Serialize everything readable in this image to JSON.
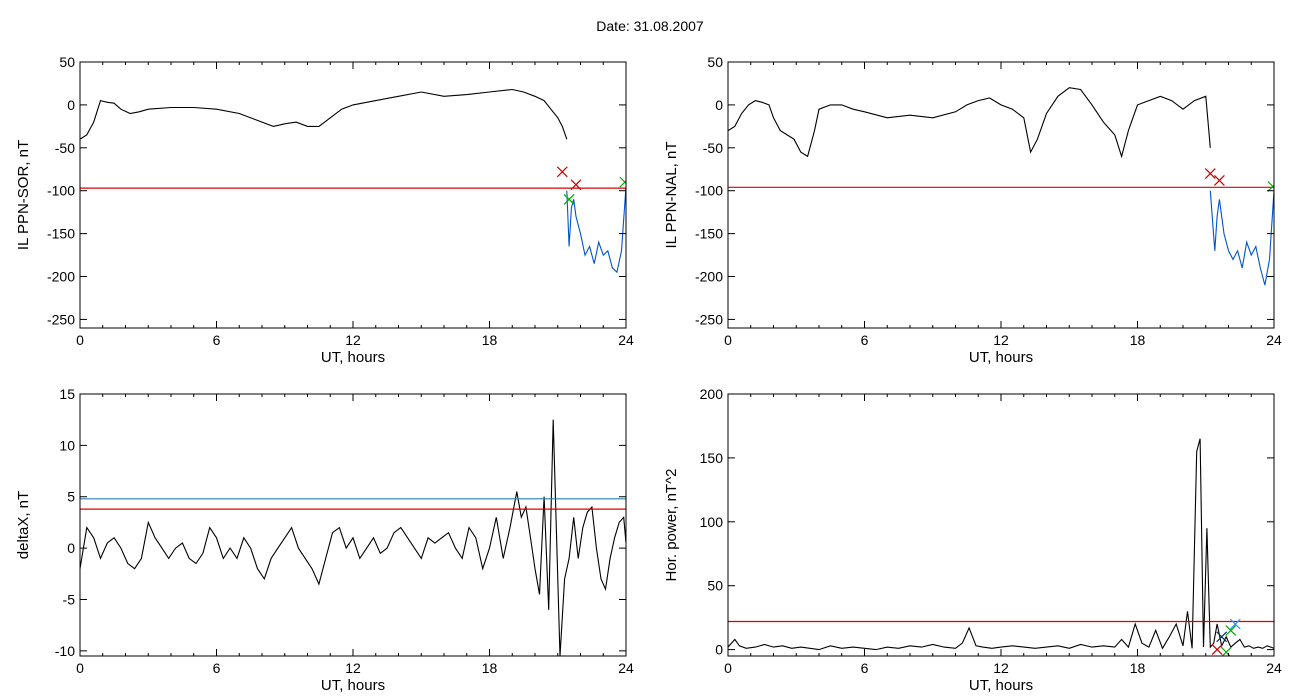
{
  "title": "Date:  31.08.2007",
  "chart_data": [
    {
      "type": "line",
      "xlabel": "UT, hours",
      "ylabel": "IL PPN-SOR, nT",
      "xlim": [
        0,
        24
      ],
      "ylim": [
        -260,
        50
      ],
      "xticks": [
        0,
        6,
        12,
        18,
        24
      ],
      "yticks": [
        50,
        0,
        -50,
        -100,
        -150,
        -200,
        -250
      ],
      "series": [
        {
          "color": "#000000",
          "x": [
            0,
            0.3,
            0.6,
            0.9,
            1.2,
            1.5,
            1.8,
            2.2,
            2.6,
            3,
            4,
            5,
            6,
            7,
            8,
            8.5,
            9,
            9.5,
            10,
            10.5,
            11,
            11.5,
            12,
            13,
            14,
            15,
            16,
            17,
            18,
            19,
            19.5,
            20,
            20.4,
            20.7,
            21,
            21.2,
            21.4
          ],
          "y": [
            -40,
            -35,
            -20,
            5,
            3,
            2,
            -5,
            -10,
            -8,
            -5,
            -3,
            -3,
            -5,
            -10,
            -20,
            -25,
            -22,
            -20,
            -25,
            -25,
            -15,
            -5,
            0,
            5,
            10,
            15,
            10,
            12,
            15,
            18,
            15,
            10,
            5,
            -5,
            -15,
            -25,
            -40
          ]
        },
        {
          "color": "#0055cc",
          "x": [
            21.4,
            21.5,
            21.6,
            21.7,
            21.8,
            22,
            22.2,
            22.4,
            22.6,
            22.8,
            23,
            23.2,
            23.4,
            23.6,
            23.8,
            24
          ],
          "y": [
            -100,
            -165,
            -120,
            -110,
            -130,
            -150,
            -175,
            -165,
            -185,
            -160,
            -175,
            -170,
            -190,
            -195,
            -170,
            -95
          ]
        },
        {
          "color": "#dd0000",
          "x": [
            0,
            24
          ],
          "y": [
            -97,
            -97
          ]
        }
      ],
      "markers": [
        {
          "color": "#cc0000",
          "x": 21.2,
          "y": -78
        },
        {
          "color": "#cc0000",
          "x": 21.8,
          "y": -93
        },
        {
          "color": "#00aa00",
          "x": 21.5,
          "y": -110
        },
        {
          "color": "#00aa00",
          "x": 23.95,
          "y": -90
        }
      ]
    },
    {
      "type": "line",
      "xlabel": "UT, hours",
      "ylabel": "IL PPN-NAL, nT",
      "xlim": [
        0,
        24
      ],
      "ylim": [
        -260,
        50
      ],
      "xticks": [
        0,
        6,
        12,
        18,
        24
      ],
      "yticks": [
        50,
        0,
        -50,
        -100,
        -150,
        -200,
        -250
      ],
      "series": [
        {
          "color": "#000000",
          "x": [
            0,
            0.3,
            0.6,
            0.9,
            1.2,
            1.5,
            1.8,
            2,
            2.3,
            2.6,
            2.9,
            3.2,
            3.5,
            3.8,
            4,
            4.5,
            5,
            5.5,
            6,
            7,
            8,
            9,
            10,
            10.5,
            11,
            11.5,
            12,
            12.5,
            13,
            13.3,
            13.6,
            14,
            14.5,
            15,
            15.5,
            16,
            16.5,
            17,
            17.3,
            17.6,
            18,
            18.5,
            19,
            19.5,
            20,
            20.5,
            21,
            21.2
          ],
          "y": [
            -30,
            -25,
            -10,
            0,
            5,
            3,
            0,
            -15,
            -30,
            -35,
            -40,
            -55,
            -60,
            -30,
            -5,
            0,
            0,
            -5,
            -8,
            -15,
            -12,
            -15,
            -8,
            0,
            5,
            8,
            0,
            -5,
            -15,
            -55,
            -40,
            -10,
            10,
            20,
            18,
            0,
            -20,
            -35,
            -60,
            -30,
            0,
            5,
            10,
            5,
            -5,
            5,
            10,
            -50
          ]
        },
        {
          "color": "#0055cc",
          "x": [
            21.2,
            21.4,
            21.5,
            21.6,
            21.8,
            22,
            22.2,
            22.4,
            22.6,
            22.8,
            23,
            23.2,
            23.4,
            23.6,
            23.8,
            24
          ],
          "y": [
            -100,
            -170,
            -130,
            -110,
            -150,
            -170,
            -180,
            -170,
            -190,
            -160,
            -175,
            -165,
            -190,
            -210,
            -180,
            -100
          ]
        },
        {
          "color": "#dd0000",
          "x": [
            0,
            24
          ],
          "y": [
            -96,
            -96
          ]
        }
      ],
      "markers": [
        {
          "color": "#cc0000",
          "x": 21.2,
          "y": -80
        },
        {
          "color": "#cc0000",
          "x": 21.6,
          "y": -88
        },
        {
          "color": "#00aa00",
          "x": 23.95,
          "y": -95
        }
      ]
    },
    {
      "type": "line",
      "xlabel": "UT, hours",
      "ylabel": "deltaX, nT",
      "xlim": [
        0,
        24
      ],
      "ylim": [
        -10.5,
        15
      ],
      "xticks": [
        0,
        6,
        12,
        18,
        24
      ],
      "yticks": [
        15,
        10,
        5,
        0,
        -5,
        -10
      ],
      "series": [
        {
          "color": "#000000",
          "x": [
            0,
            0.3,
            0.6,
            0.9,
            1.2,
            1.5,
            1.8,
            2.1,
            2.4,
            2.7,
            3,
            3.3,
            3.6,
            3.9,
            4.2,
            4.5,
            4.8,
            5.1,
            5.4,
            5.7,
            6,
            6.3,
            6.6,
            6.9,
            7.2,
            7.5,
            7.8,
            8.1,
            8.4,
            8.7,
            9,
            9.3,
            9.6,
            9.9,
            10.2,
            10.5,
            10.8,
            11.1,
            11.4,
            11.7,
            12,
            12.3,
            12.6,
            12.9,
            13.2,
            13.5,
            13.8,
            14.1,
            14.4,
            14.7,
            15,
            15.3,
            15.6,
            15.9,
            16.2,
            16.5,
            16.8,
            17.1,
            17.4,
            17.7,
            18,
            18.3,
            18.6,
            18.9,
            19.2,
            19.4,
            19.6,
            19.8,
            20,
            20.2,
            20.4,
            20.6,
            20.8,
            20.95,
            21.1,
            21.3,
            21.5,
            21.7,
            21.9,
            22.1,
            22.3,
            22.5,
            22.7,
            22.9,
            23.1,
            23.3,
            23.5,
            23.7,
            23.9,
            24
          ],
          "y": [
            -2,
            2,
            1,
            -1,
            0.5,
            1,
            0,
            -1.5,
            -2,
            -1,
            2.5,
            1,
            0,
            -1,
            0,
            0.5,
            -1,
            -1.5,
            -0.5,
            2,
            1,
            -1,
            0,
            -1,
            1,
            0,
            -2,
            -3,
            -1,
            0,
            1,
            2,
            0,
            -1,
            -2,
            -3.5,
            -1,
            1.5,
            2,
            0,
            1,
            -1,
            0,
            1,
            -0.5,
            0,
            1.5,
            2,
            1,
            0,
            -1,
            1,
            0.5,
            1,
            1.5,
            0,
            -1,
            2,
            1,
            -2,
            0,
            3,
            -1,
            2,
            5.5,
            3,
            4,
            1,
            -2,
            -4.5,
            5,
            -6,
            12.5,
            1,
            -10.5,
            -3,
            -1,
            3,
            -1,
            2,
            3.5,
            4,
            0,
            -3,
            -4,
            -1,
            1,
            2.5,
            3,
            0.5
          ]
        },
        {
          "color": "#2a7fb5",
          "x": [
            0,
            24
          ],
          "y": [
            4.8,
            4.8
          ]
        },
        {
          "color": "#dd0000",
          "x": [
            0,
            24
          ],
          "y": [
            3.8,
            3.8
          ]
        }
      ],
      "markers": []
    },
    {
      "type": "line",
      "xlabel": "UT, hours",
      "ylabel": "Hor. power, nT^2",
      "xlim": [
        0,
        24
      ],
      "ylim": [
        -5,
        200
      ],
      "xticks": [
        0,
        6,
        12,
        18,
        24
      ],
      "yticks": [
        200,
        150,
        100,
        50,
        0
      ],
      "series": [
        {
          "color": "#000000",
          "x": [
            0,
            0.3,
            0.5,
            0.8,
            1.2,
            1.6,
            2,
            2.4,
            2.8,
            3.2,
            3.6,
            4,
            4.5,
            5,
            5.5,
            6,
            6.5,
            7,
            7.5,
            8,
            8.5,
            9,
            9.5,
            10,
            10.3,
            10.6,
            10.9,
            11.2,
            11.6,
            12,
            12.5,
            13,
            13.5,
            14,
            14.5,
            15,
            15.5,
            16,
            16.5,
            17,
            17.3,
            17.6,
            17.9,
            18.2,
            18.5,
            18.8,
            19.1,
            19.4,
            19.7,
            20,
            20.2,
            20.4,
            20.6,
            20.75,
            20.9,
            21.05,
            21.2,
            21.35,
            21.5,
            21.7,
            21.9,
            22.1,
            22.3,
            22.5,
            22.7,
            22.9,
            23.1,
            23.3,
            23.5,
            23.7,
            24
          ],
          "y": [
            2,
            8,
            3,
            1,
            2,
            4,
            2,
            3,
            1,
            2,
            1,
            0,
            3,
            1,
            2,
            1,
            0,
            2,
            1,
            3,
            2,
            4,
            2,
            1,
            5,
            17,
            3,
            2,
            1,
            2,
            3,
            2,
            1,
            2,
            3,
            1,
            4,
            2,
            3,
            2,
            8,
            2,
            20,
            5,
            2,
            15,
            1,
            10,
            20,
            3,
            30,
            1,
            155,
            165,
            2,
            95,
            2,
            5,
            20,
            3,
            10,
            2,
            5,
            8,
            2,
            3,
            1,
            2,
            1,
            3,
            1
          ]
        },
        {
          "color": "#dd0000",
          "x": [
            0,
            24
          ],
          "y": [
            22,
            22
          ]
        }
      ],
      "markers": [
        {
          "color": "#cc0000",
          "x": 21.5,
          "y": 0
        },
        {
          "color": "#003366",
          "x": 21.7,
          "y": 10
        },
        {
          "color": "#3399ff",
          "x": 22.3,
          "y": 20
        },
        {
          "color": "#00aa00",
          "x": 21.9,
          "y": -2
        },
        {
          "color": "#00aa00",
          "x": 22.1,
          "y": 15
        }
      ]
    }
  ]
}
